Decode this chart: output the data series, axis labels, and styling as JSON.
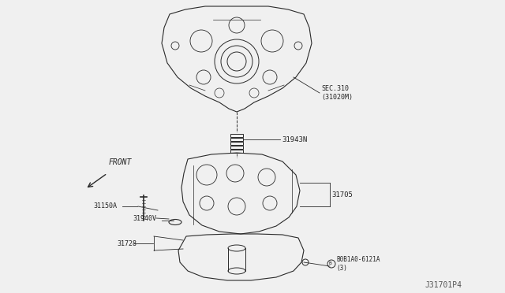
{
  "bg_color": "#f0f0f0",
  "line_color": "#2a2a2a",
  "label_color": "#222222",
  "title_ref": "J31701P4",
  "labels": {
    "sec310": "SEC.310\n(31020M)",
    "l31943N": "31943N",
    "l31705": "31705",
    "l31150A": "31150A",
    "l31940V": "31940V",
    "l31728": "31728",
    "lB0B1A0": "B0B1A0-6121A\n(3)",
    "front": "FRONT"
  }
}
